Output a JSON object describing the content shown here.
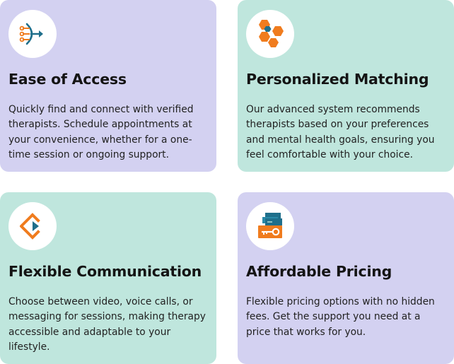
{
  "features": [
    {
      "title": "Ease of Access",
      "description": "Quickly find and connect with verified therapists. Schedule appointments at your convenience, whether for a one-time session or ongoing support.",
      "icon": "access-arrow-icon"
    },
    {
      "title": "Personalized Matching",
      "description": "Our advanced system recommends therapists based on your preferences and mental health goals, ensuring you feel comfortable with your choice.",
      "icon": "hexagons-icon"
    },
    {
      "title": "Flexible Communication",
      "description": "Choose between video, voice calls, or messaging for sessions, making therapy accessible and adaptable to your lifestyle.",
      "icon": "diamond-play-icon"
    },
    {
      "title": "Affordable Pricing",
      "description": "Flexible pricing options with no hidden fees. Get the support you need at a price that works for you.",
      "icon": "key-box-icon"
    }
  ],
  "colors": {
    "card_purple": "#d3d1f1",
    "card_green": "#bfe6dd",
    "icon_orange": "#f07c1e",
    "icon_teal": "#1f6f8b",
    "text_dark": "#141414"
  }
}
